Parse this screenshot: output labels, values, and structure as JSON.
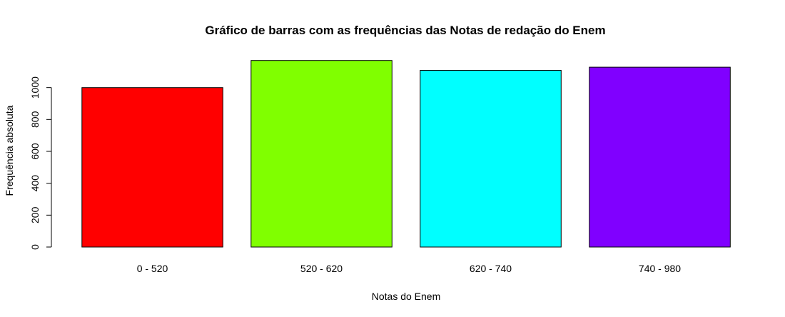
{
  "chart_data": {
    "type": "bar",
    "title": "Gráfico de barras com as frequências das Notas de redação do Enem",
    "xlabel": "Notas do Enem",
    "ylabel": "Frequência absoluta",
    "categories": [
      "0 - 520",
      "520 - 620",
      "620 - 740",
      "740 - 980"
    ],
    "values": [
      1000,
      1170,
      1108,
      1128
    ],
    "colors": [
      "#ff0000",
      "#80ff00",
      "#00ffff",
      "#8000ff"
    ],
    "ylim": [
      0,
      1200
    ],
    "yticks": [
      "0",
      "200",
      "400",
      "600",
      "800",
      "1000"
    ],
    "grid": false,
    "legend": "none"
  }
}
